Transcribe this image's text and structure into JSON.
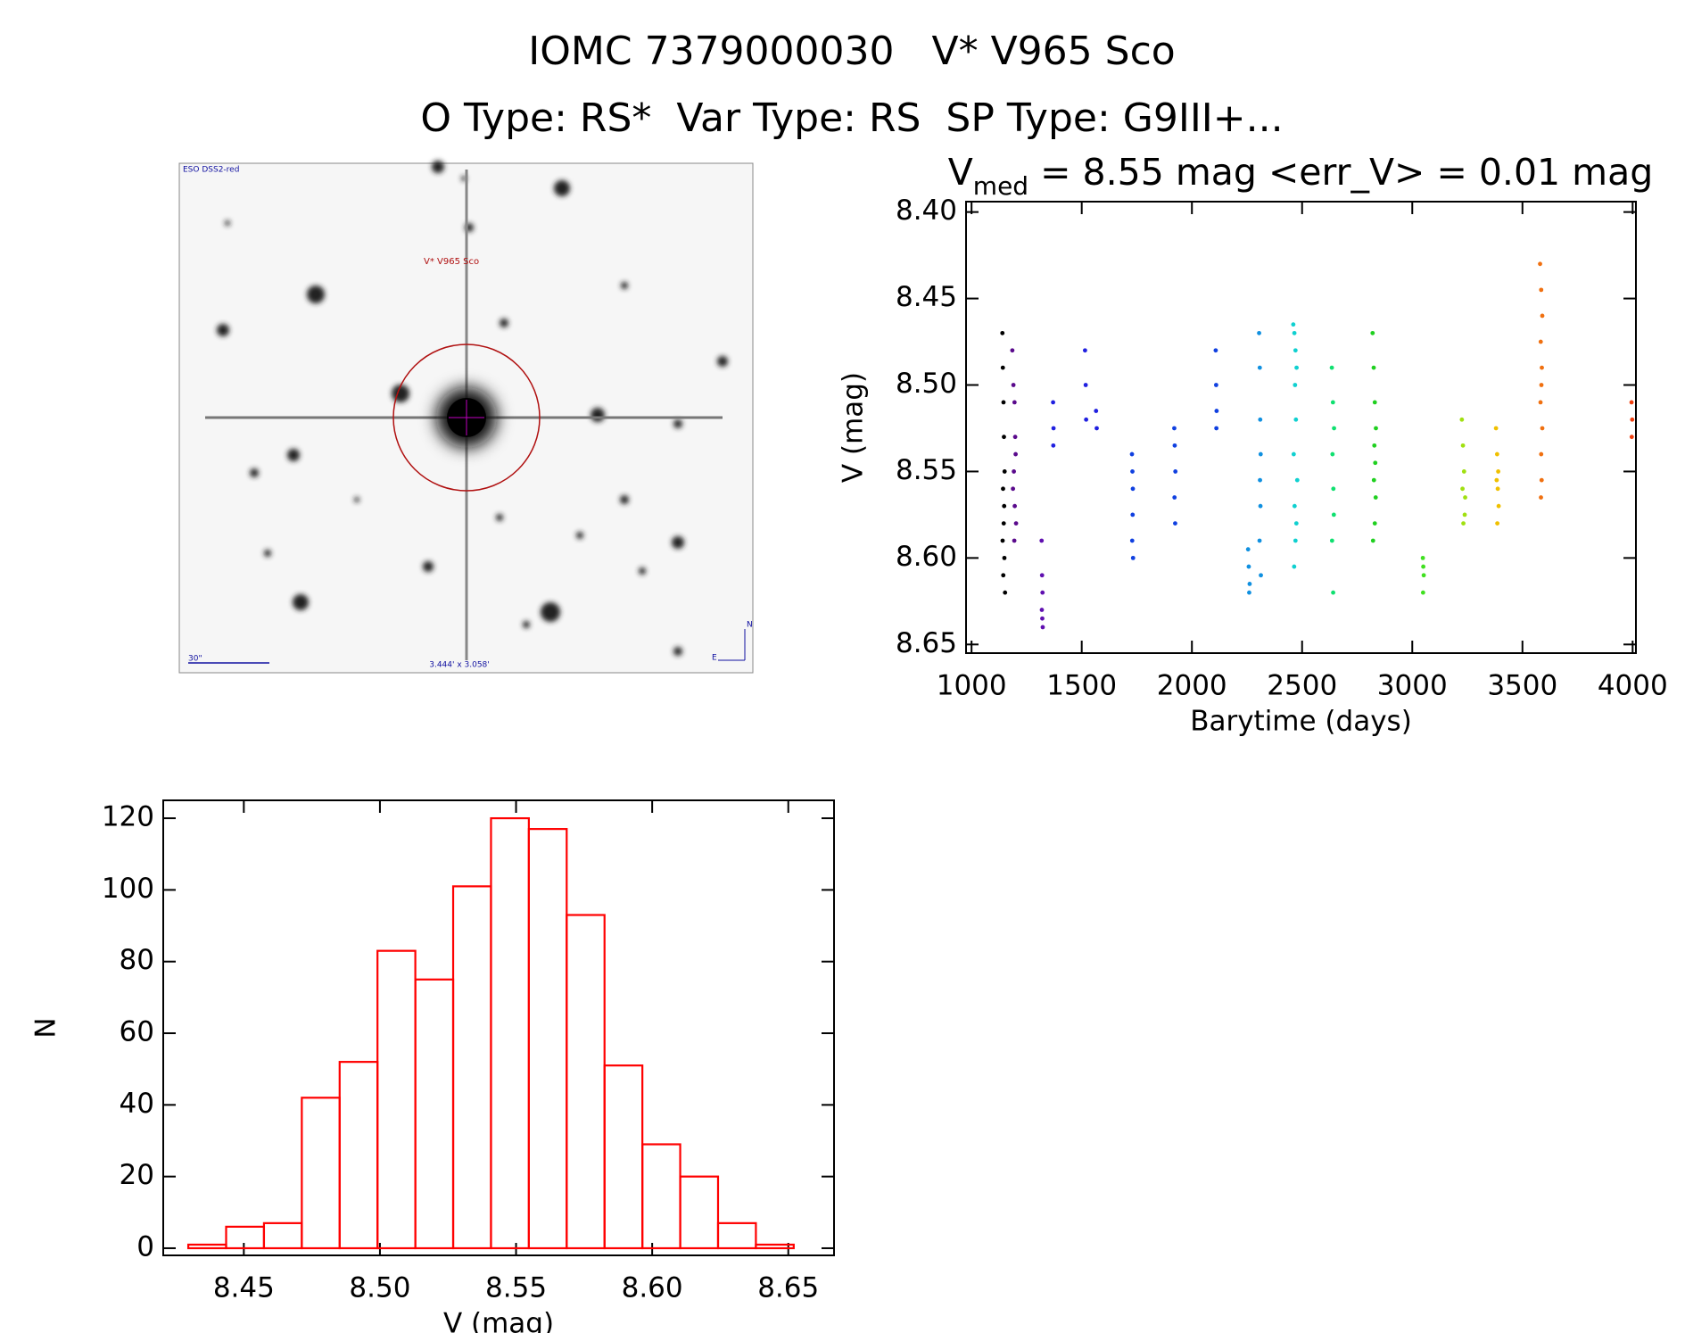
{
  "header": {
    "title": "IOMC 7379000030   V* V965 Sco",
    "subtitle": "O Type: RS*  Var Type: RS  SP Type: G9III+..."
  },
  "image": {
    "survey": "ESO DSS2-red",
    "target": "V* V965 Sco",
    "scale": "30\"",
    "fov": "3.444' x 3.058'",
    "north": "N",
    "east": "E"
  },
  "chart_data": [
    {
      "type": "scatter",
      "title_parts": [
        "V",
        "med",
        " = 8.55 mag <err_V> = 0.01 mag"
      ],
      "x_label": "Barytime (days)",
      "y_label": "V (mag)",
      "xlim": [
        975,
        4015
      ],
      "xticks": [
        1000,
        1500,
        2000,
        2500,
        3000,
        3500,
        4000
      ],
      "ylim": [
        8.394,
        8.655
      ],
      "y_inverted": true,
      "yticks": [
        {
          "value": 8.4,
          "label": "8.40"
        },
        8.45,
        {
          "value": 8.5,
          "label": "8.50"
        },
        8.55,
        {
          "value": 8.6,
          "label": "8.60"
        },
        8.65
      ],
      "series": [
        {
          "color": "#000000",
          "x": [
            1140,
            1142,
            1145,
            1147,
            1150,
            1143,
            1148,
            1146,
            1141,
            1149,
            1144,
            1152
          ],
          "values": [
            8.47,
            8.49,
            8.51,
            8.53,
            8.55,
            8.56,
            8.57,
            8.58,
            8.59,
            8.6,
            8.61,
            8.62
          ]
        },
        {
          "color": "#5a0a8c",
          "x": [
            1185,
            1190,
            1195,
            1198,
            1200,
            1192,
            1188,
            1196,
            1202,
            1194
          ],
          "values": [
            8.48,
            8.5,
            8.51,
            8.53,
            8.54,
            8.55,
            8.56,
            8.57,
            8.58,
            8.59
          ]
        },
        {
          "color": "#6010b0",
          "x": [
            1318,
            1320,
            1322,
            1319,
            1321,
            1323
          ],
          "values": [
            8.59,
            8.61,
            8.62,
            8.63,
            8.635,
            8.64
          ]
        },
        {
          "color": "#2020e0",
          "x": [
            1370,
            1372,
            1371,
            1515,
            1518,
            1520,
            1565,
            1568
          ],
          "values": [
            8.51,
            8.525,
            8.535,
            8.48,
            8.5,
            8.52,
            8.515,
            8.525
          ]
        },
        {
          "color": "#1040e0",
          "x": [
            1728,
            1730,
            1732,
            1731,
            1729,
            1733,
            1920,
            1922,
            1925,
            1921,
            1924,
            2108,
            2110,
            2112,
            2111
          ],
          "values": [
            8.54,
            8.55,
            8.56,
            8.575,
            8.59,
            8.6,
            8.525,
            8.535,
            8.55,
            8.565,
            8.58,
            8.48,
            8.5,
            8.515,
            8.525
          ]
        },
        {
          "color": "#1090e0",
          "x": [
            2255,
            2258,
            2262,
            2260,
            2305,
            2308,
            2310,
            2312,
            2309,
            2311,
            2307,
            2313
          ],
          "values": [
            8.595,
            8.605,
            8.615,
            8.62,
            8.47,
            8.49,
            8.52,
            8.54,
            8.555,
            8.57,
            8.59,
            8.61
          ]
        },
        {
          "color": "#10d0d0",
          "x": [
            2460,
            2465,
            2470,
            2475,
            2468,
            2472,
            2462,
            2478,
            2466,
            2474,
            2470,
            2464
          ],
          "values": [
            8.465,
            8.47,
            8.48,
            8.49,
            8.5,
            8.52,
            8.54,
            8.555,
            8.57,
            8.58,
            8.59,
            8.605
          ]
        },
        {
          "color": "#10e070",
          "x": [
            2635,
            2640,
            2645,
            2638,
            2642,
            2644,
            2636,
            2641
          ],
          "values": [
            8.49,
            8.51,
            8.525,
            8.54,
            8.56,
            8.575,
            8.59,
            8.62
          ]
        },
        {
          "color": "#20d020",
          "x": [
            2820,
            2825,
            2830,
            2835,
            2828,
            2832,
            2826,
            2834,
            2830,
            2822
          ],
          "values": [
            8.47,
            8.49,
            8.51,
            8.525,
            8.535,
            8.545,
            8.555,
            8.565,
            8.58,
            8.59
          ]
        },
        {
          "color": "#40e020",
          "x": [
            3048,
            3050,
            3052,
            3049
          ],
          "values": [
            8.6,
            8.605,
            8.61,
            8.62
          ]
        },
        {
          "color": "#a0e010",
          "x": [
            3225,
            3230,
            3235,
            3228,
            3240,
            3238,
            3232
          ],
          "values": [
            8.52,
            8.535,
            8.55,
            8.56,
            8.565,
            8.575,
            8.58
          ]
        },
        {
          "color": "#f0c000",
          "x": [
            3380,
            3385,
            3390,
            3383,
            3388,
            3392,
            3386
          ],
          "values": [
            8.525,
            8.54,
            8.55,
            8.555,
            8.56,
            8.57,
            8.58
          ]
        },
        {
          "color": "#f07010",
          "x": [
            3580,
            3585,
            3590,
            3583,
            3588,
            3586,
            3582,
            3590,
            3585,
            3587,
            3584
          ],
          "values": [
            8.43,
            8.445,
            8.46,
            8.475,
            8.49,
            8.5,
            8.51,
            8.525,
            8.54,
            8.555,
            8.565
          ]
        },
        {
          "color": "#f04010",
          "x": [
            3995,
            3998,
            3996
          ],
          "values": [
            8.51,
            8.52,
            8.53
          ]
        }
      ]
    },
    {
      "type": "histogram",
      "x_label": "V (mag)",
      "y_label": "N",
      "color": "#ff0000",
      "bins": [
        8.4296,
        8.4435,
        8.4574,
        8.4713,
        8.4852,
        8.4991,
        8.513,
        8.5269,
        8.5408,
        8.5547,
        8.5686,
        8.5825,
        8.5964,
        8.6103,
        8.6242,
        8.6381,
        8.652
      ],
      "values": [
        1,
        6,
        7,
        42,
        52,
        83,
        75,
        101,
        120,
        117,
        93,
        51,
        29,
        20,
        7,
        1
      ],
      "xlim": [
        8.4204,
        8.6668
      ],
      "xticks": [
        8.45,
        {
          "value": 8.5,
          "label": "8.50"
        },
        8.55,
        {
          "value": 8.6,
          "label": "8.60"
        },
        8.65
      ],
      "ylim": [
        -2,
        125
      ],
      "yticks": [
        0,
        20,
        40,
        60,
        80,
        100,
        120
      ]
    }
  ]
}
